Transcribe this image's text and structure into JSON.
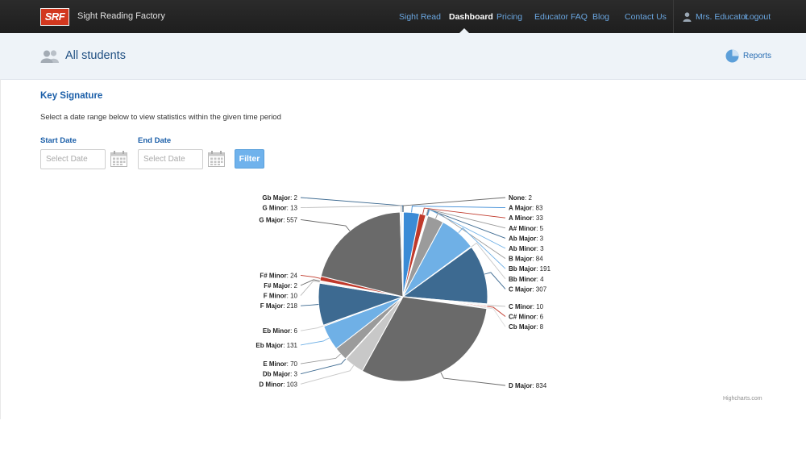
{
  "brand": {
    "logo_text": "SRF",
    "name": "Sight Reading Factory"
  },
  "nav": {
    "items": [
      {
        "label": "Sight Read",
        "active": false
      },
      {
        "label": "Dashboard",
        "active": true
      },
      {
        "label": "Pricing",
        "active": false
      },
      {
        "label": "Educator FAQ",
        "active": false
      },
      {
        "label": "Blog",
        "active": false
      },
      {
        "label": "Contact Us",
        "active": false
      }
    ],
    "user": "Mrs. Educator",
    "logout": "Logout"
  },
  "subheader": {
    "title": "All students",
    "reports": "Reports"
  },
  "filters": {
    "section_title": "Key Signature",
    "intro": "Select a date range below to view statistics within the given time period",
    "start_label": "Start Date",
    "end_label": "End Date",
    "start_placeholder": "Select Date",
    "end_placeholder": "Select Date",
    "filter_button": "Filter"
  },
  "credits": "Highcharts.com",
  "colors": {
    "dark_gray": "#6a6a6a",
    "steel_blue": "#3d6a91",
    "red": "#c0392b",
    "light_gray": "#9b9b9b",
    "light_blue": "#6fb0e6",
    "pale_gray": "#c8c8c8",
    "accent_blue": "#3b8bd6"
  },
  "chart_data": {
    "type": "pie",
    "title": "",
    "slices": [
      {
        "label": "None",
        "value": 2,
        "color": "#6a6a6a"
      },
      {
        "label": "A Major",
        "value": 83,
        "color": "#3b8bd6"
      },
      {
        "label": "A Minor",
        "value": 33,
        "color": "#c0392b"
      },
      {
        "label": "A# Minor",
        "value": 5,
        "color": "#9b9b9b"
      },
      {
        "label": "Ab Major",
        "value": 3,
        "color": "#3d6a91"
      },
      {
        "label": "Ab Minor",
        "value": 3,
        "color": "#6fb0e6"
      },
      {
        "label": "B Major",
        "value": 84,
        "color": "#9b9b9b"
      },
      {
        "label": "Bb Major",
        "value": 191,
        "color": "#6fb0e6"
      },
      {
        "label": "Bb Minor",
        "value": 4,
        "color": "#c8c8c8"
      },
      {
        "label": "C Major",
        "value": 307,
        "color": "#3d6a91"
      },
      {
        "label": "C Minor",
        "value": 10,
        "color": "#f4f4f4"
      },
      {
        "label": "C# Minor",
        "value": 6,
        "color": "#c0392b"
      },
      {
        "label": "Cb Major",
        "value": 8,
        "color": "#dcdcdc"
      },
      {
        "label": "D Major",
        "value": 834,
        "color": "#6a6a6a"
      },
      {
        "label": "D Minor",
        "value": 103,
        "color": "#c8c8c8"
      },
      {
        "label": "Db Major",
        "value": 3,
        "color": "#3d6a91"
      },
      {
        "label": "E Minor",
        "value": 70,
        "color": "#9b9b9b"
      },
      {
        "label": "Eb Major",
        "value": 131,
        "color": "#6fb0e6"
      },
      {
        "label": "Eb Minor",
        "value": 6,
        "color": "#c8c8c8"
      },
      {
        "label": "F Major",
        "value": 218,
        "color": "#3d6a91"
      },
      {
        "label": "F Minor",
        "value": 10,
        "color": "#f4f4f4"
      },
      {
        "label": "F# Major",
        "value": 2,
        "color": "#6a6a6a"
      },
      {
        "label": "F# Minor",
        "value": 24,
        "color": "#c0392b"
      },
      {
        "label": "G Major",
        "value": 557,
        "color": "#6a6a6a"
      },
      {
        "label": "G Minor",
        "value": 13,
        "color": "#f4f4f4"
      },
      {
        "label": "Gb Major",
        "value": 2,
        "color": "#3d6a91"
      }
    ]
  }
}
